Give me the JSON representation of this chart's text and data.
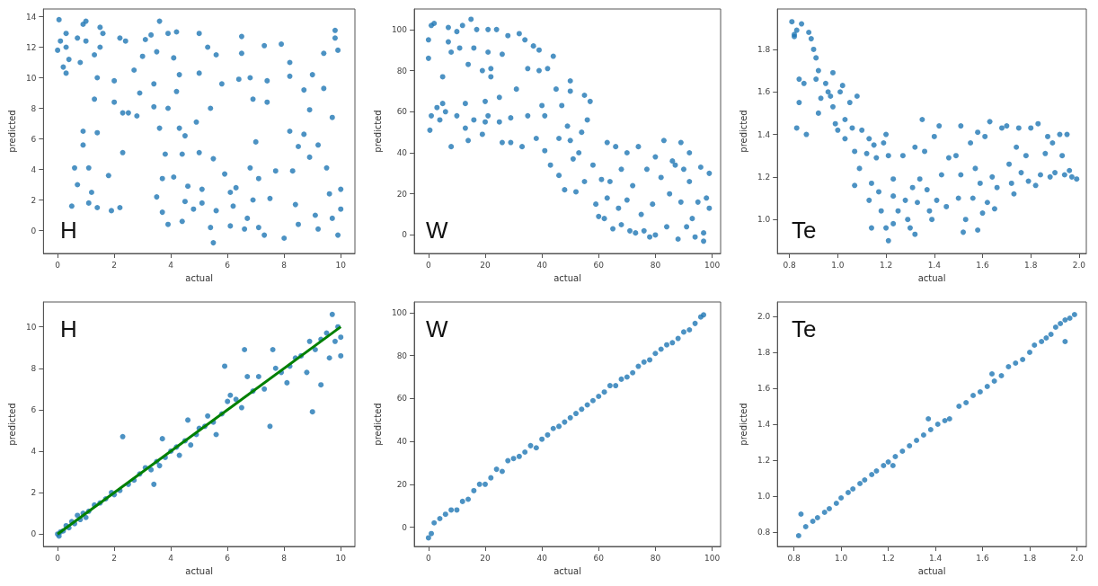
{
  "chart_data": [
    {
      "type": "scatter",
      "title": "H",
      "xlabel": "actual",
      "ylabel": "predicted",
      "color": "#1f77b4",
      "marker": "circle",
      "xlim": [
        -0.5,
        10.5
      ],
      "xticks": [
        0,
        2,
        4,
        6,
        8,
        10
      ],
      "ylim": [
        -1.5,
        14.5
      ],
      "yticks": [
        0,
        2,
        4,
        6,
        8,
        10,
        12,
        14
      ],
      "x": [
        0.05,
        0,
        0.1,
        0.3,
        0.2,
        0.3,
        0.4,
        0.3,
        0.7,
        0.8,
        0.9,
        1.0,
        1.0,
        1.3,
        1.5,
        1.6,
        1.5,
        1.4,
        1.3,
        0.9,
        0.9,
        0.6,
        0.5,
        0.7,
        1.1,
        1.2,
        1.1,
        1.4,
        1.4,
        1.9,
        1.8,
        2.3,
        2.2,
        2.0,
        2.0,
        2.3,
        2.5,
        2.4,
        2.2,
        2.7,
        2.8,
        2.9,
        3.0,
        3.1,
        3.3,
        3.4,
        3.4,
        3.6,
        3.5,
        3.6,
        3.8,
        3.5,
        3.7,
        3.9,
        3.7,
        3.9,
        3.9,
        4.1,
        4.2,
        4.2,
        4.3,
        4.1,
        4.3,
        4.5,
        4.4,
        4.6,
        4.5,
        4.4,
        4.8,
        4.9,
        5.0,
        5.0,
        5.0,
        5.1,
        5.1,
        5.3,
        5.4,
        5.5,
        5.4,
        5.5,
        5.6,
        5.6,
        5.8,
        5.9,
        6.1,
        6.1,
        6.2,
        6.3,
        6.5,
        6.4,
        6.5,
        6.6,
        6.7,
        6.8,
        6.9,
        6.8,
        6.9,
        7.0,
        7.1,
        7.1,
        7.3,
        7.4,
        7.4,
        7.3,
        7.5,
        7.7,
        7.9,
        8.0,
        8.2,
        8.2,
        8.2,
        8.3,
        8.5,
        8.4,
        8.5,
        8.7,
        8.7,
        8.9,
        8.9,
        9.0,
        9.1,
        9.2,
        9.2,
        9.4,
        9.4,
        9.5,
        9.6,
        9.7,
        9.8,
        9.8,
        9.9,
        9.7,
        9.9,
        10.0,
        10.0
      ],
      "values": [
        13.8,
        11.8,
        12.4,
        12.9,
        10.7,
        10.3,
        11.2,
        12.0,
        12.6,
        11.0,
        13.5,
        13.7,
        12.4,
        11.5,
        13.3,
        12.9,
        12.0,
        10.0,
        8.6,
        6.5,
        5.6,
        4.1,
        1.6,
        3.0,
        4.1,
        2.5,
        1.8,
        6.4,
        1.5,
        1.3,
        3.6,
        5.1,
        1.5,
        9.8,
        8.4,
        7.7,
        7.7,
        12.4,
        12.6,
        10.5,
        7.5,
        9.0,
        11.4,
        12.5,
        12.8,
        9.6,
        8.1,
        13.7,
        11.7,
        6.7,
        5.0,
        2.2,
        1.2,
        0.4,
        3.4,
        8.0,
        12.9,
        11.3,
        9.1,
        13.0,
        10.2,
        3.5,
        6.7,
        6.2,
        5.0,
        2.9,
        1.9,
        0.6,
        1.4,
        7.1,
        10.3,
        12.9,
        5.1,
        2.7,
        1.8,
        12.0,
        8.0,
        4.7,
        0.2,
        -0.8,
        1.3,
        11.5,
        9.6,
        3.7,
        2.5,
        0.3,
        1.6,
        2.8,
        12.7,
        9.9,
        11.6,
        0.1,
        0.8,
        4.1,
        2.0,
        10.0,
        8.6,
        5.8,
        3.4,
        0.2,
        12.1,
        9.8,
        8.4,
        -0.3,
        2.1,
        3.9,
        12.2,
        -0.5,
        11.0,
        10.1,
        6.5,
        3.9,
        0.4,
        1.7,
        5.5,
        6.3,
        9.2,
        7.9,
        4.8,
        10.2,
        1.0,
        0.1,
        5.6,
        11.6,
        9.3,
        4.1,
        2.4,
        7.4,
        13.1,
        12.6,
        11.8,
        0.8,
        -0.3,
        2.7,
        1.4
      ]
    },
    {
      "type": "scatter",
      "title": "W",
      "xlabel": "actual",
      "ylabel": "predicted",
      "color": "#1f77b4",
      "marker": "circle",
      "xlim": [
        -5,
        103
      ],
      "xticks": [
        0,
        20,
        40,
        60,
        80,
        100
      ],
      "ylim": [
        -9,
        110
      ],
      "yticks": [
        0,
        20,
        40,
        60,
        80,
        100
      ],
      "x": [
        0,
        0,
        1,
        2,
        1,
        0.5,
        3,
        4,
        5,
        5,
        6,
        7,
        7,
        8,
        8,
        10,
        10,
        11,
        12,
        13,
        13,
        14,
        15,
        16,
        16,
        14,
        17,
        19,
        19,
        20,
        20,
        21,
        21,
        22,
        22,
        21,
        24,
        25,
        25,
        26,
        26,
        28,
        29,
        29,
        31,
        32,
        33,
        34,
        35,
        35,
        37,
        38,
        39,
        39,
        40,
        41,
        41,
        42,
        43,
        44,
        45,
        46,
        46,
        47,
        48,
        49,
        50,
        50,
        50,
        51,
        52,
        53,
        54,
        55,
        55,
        56,
        57,
        58,
        59,
        60,
        61,
        62,
        63,
        63,
        64,
        65,
        66,
        67,
        68,
        68,
        70,
        70,
        71,
        72,
        73,
        74,
        75,
        76,
        77,
        78,
        79,
        80,
        80,
        82,
        83,
        84,
        85,
        86,
        87,
        88,
        89,
        89,
        90,
        91,
        92,
        92,
        93,
        94,
        95,
        96,
        97,
        98,
        99,
        99,
        97
      ],
      "values": [
        86,
        95,
        102,
        103,
        58,
        51,
        62,
        56,
        77,
        64,
        60,
        101,
        94,
        89,
        43,
        58,
        99,
        91,
        102,
        64,
        52,
        83,
        105,
        91,
        56,
        46,
        100,
        80,
        49,
        55,
        65,
        100,
        89,
        81,
        77,
        58,
        100,
        55,
        67,
        88,
        45,
        97,
        57,
        45,
        71,
        98,
        43,
        95,
        81,
        58,
        92,
        47,
        90,
        80,
        63,
        58,
        41,
        81,
        34,
        87,
        71,
        47,
        29,
        63,
        22,
        53,
        75,
        46,
        70,
        37,
        21,
        40,
        50,
        68,
        26,
        56,
        65,
        34,
        15,
        9,
        27,
        8,
        45,
        18,
        26,
        3,
        43,
        13,
        5,
        32,
        40,
        17,
        2,
        24,
        1,
        43,
        10,
        2,
        32,
        -1,
        15,
        38,
        0,
        28,
        46,
        4,
        20,
        36,
        34,
        -2,
        16,
        45,
        32,
        4,
        40,
        26,
        8,
        -1,
        16,
        33,
        1,
        18,
        30,
        13,
        -3
      ]
    },
    {
      "type": "scatter",
      "title": "Te",
      "xlabel": "actual",
      "ylabel": "predicted",
      "color": "#1f77b4",
      "marker": "circle",
      "xlim": [
        0.75,
        2.03
      ],
      "xticks": [
        {
          "value": 0.8,
          "label": "0.8"
        },
        {
          "value": 1,
          "label": "1.0"
        },
        {
          "value": 1.2,
          "label": "1.2"
        },
        {
          "value": 1.4,
          "label": "1.4"
        },
        {
          "value": 1.6,
          "label": "1.6"
        },
        {
          "value": 1.8,
          "label": "1.8"
        },
        {
          "value": 2,
          "label": "2.0"
        }
      ],
      "ylim": [
        0.84,
        1.99
      ],
      "yticks": [
        {
          "value": 1,
          "label": "1.0"
        },
        {
          "value": 1.2,
          "label": "1.2"
        },
        {
          "value": 1.4,
          "label": "1.4"
        },
        {
          "value": 1.6,
          "label": "1.6"
        },
        {
          "value": 1.8,
          "label": "1.8"
        }
      ],
      "x": [
        0.81,
        0.82,
        0.82,
        0.83,
        0.84,
        0.84,
        0.83,
        0.85,
        0.86,
        0.87,
        0.88,
        0.89,
        0.9,
        0.91,
        0.92,
        0.91,
        0.93,
        0.92,
        0.95,
        0.96,
        0.97,
        0.98,
        0.98,
        0.99,
        1.0,
        1.01,
        1.02,
        1.03,
        1.03,
        1.05,
        1.06,
        1.07,
        1.07,
        1.08,
        1.09,
        1.1,
        1.12,
        1.13,
        1.13,
        1.14,
        1.14,
        1.15,
        1.16,
        1.17,
        1.18,
        1.19,
        1.2,
        1.2,
        1.21,
        1.21,
        1.23,
        1.23,
        1.23,
        1.25,
        1.27,
        1.28,
        1.29,
        1.3,
        1.31,
        1.32,
        1.32,
        1.33,
        1.34,
        1.35,
        1.36,
        1.37,
        1.38,
        1.39,
        1.4,
        1.41,
        1.42,
        1.43,
        1.45,
        1.46,
        1.49,
        1.5,
        1.51,
        1.51,
        1.52,
        1.53,
        1.55,
        1.56,
        1.57,
        1.58,
        1.58,
        1.59,
        1.6,
        1.61,
        1.62,
        1.63,
        1.64,
        1.65,
        1.66,
        1.68,
        1.7,
        1.71,
        1.72,
        1.73,
        1.74,
        1.75,
        1.76,
        1.78,
        1.79,
        1.8,
        1.82,
        1.83,
        1.84,
        1.86,
        1.87,
        1.88,
        1.89,
        1.9,
        1.92,
        1.93,
        1.94,
        1.95,
        1.96,
        1.97,
        1.99
      ],
      "values": [
        1.93,
        1.87,
        1.86,
        1.89,
        1.66,
        1.55,
        1.43,
        1.92,
        1.64,
        1.4,
        1.88,
        1.85,
        1.8,
        1.76,
        1.7,
        1.66,
        1.57,
        1.5,
        1.64,
        1.6,
        1.58,
        1.69,
        1.53,
        1.45,
        1.42,
        1.6,
        1.63,
        1.47,
        1.38,
        1.55,
        1.43,
        1.32,
        1.16,
        1.58,
        1.24,
        1.42,
        1.31,
        1.38,
        1.09,
        0.96,
        1.17,
        1.35,
        1.29,
        1.13,
        1.04,
        1.36,
        1.4,
        0.96,
        1.3,
        0.9,
        1.11,
        1.19,
        0.98,
        1.04,
        1.3,
        1.09,
        1.0,
        0.96,
        1.15,
        1.34,
        0.93,
        1.08,
        1.19,
        1.47,
        1.32,
        1.14,
        1.04,
        1.0,
        1.39,
        1.09,
        1.44,
        1.21,
        1.06,
        1.29,
        1.3,
        1.1,
        1.44,
        1.21,
        0.94,
        1.0,
        1.36,
        1.1,
        1.24,
        0.95,
        1.41,
        1.17,
        1.03,
        1.39,
        1.08,
        1.46,
        1.2,
        1.05,
        1.15,
        1.43,
        1.44,
        1.26,
        1.17,
        1.12,
        1.34,
        1.43,
        1.22,
        1.3,
        1.18,
        1.43,
        1.16,
        1.45,
        1.21,
        1.31,
        1.39,
        1.2,
        1.36,
        1.22,
        1.4,
        1.3,
        1.21,
        1.4,
        1.23,
        1.2,
        1.19
      ]
    },
    {
      "type": "scatter",
      "title": "H",
      "xlabel": "actual",
      "ylabel": "predicted",
      "marker": "circle",
      "xlim": [
        -0.5,
        10.5
      ],
      "xticks": [
        0,
        2,
        4,
        6,
        8,
        10
      ],
      "ylim": [
        -0.6,
        11.2
      ],
      "yticks": [
        0,
        2,
        4,
        6,
        8,
        10
      ],
      "series": [
        {
          "type": "scatter",
          "color": "#1f77b4",
          "x": [
            0,
            0.05,
            0.1,
            0.2,
            0.3,
            0.4,
            0.5,
            0.6,
            0.7,
            0.8,
            0.9,
            1.0,
            1.1,
            1.3,
            1.5,
            1.7,
            1.9,
            2.0,
            2.2,
            2.3,
            2.5,
            2.7,
            2.9,
            3.1,
            3.3,
            3.4,
            3.5,
            3.6,
            3.7,
            3.8,
            4.0,
            4.2,
            4.3,
            4.5,
            4.6,
            4.7,
            4.9,
            5.0,
            5.2,
            5.3,
            5.5,
            5.6,
            5.8,
            5.9,
            6.0,
            6.1,
            6.3,
            6.5,
            6.6,
            6.7,
            6.9,
            7.1,
            7.3,
            7.5,
            7.6,
            7.7,
            7.9,
            8.1,
            8.2,
            8.4,
            8.6,
            8.8,
            8.9,
            9.0,
            9.1,
            9.3,
            9.3,
            9.5,
            9.6,
            9.7,
            9.8,
            9.9,
            10.0,
            10.0
          ],
          "values": [
            0,
            -0.1,
            0.1,
            0.15,
            0.4,
            0.3,
            0.6,
            0.5,
            0.9,
            0.7,
            1.0,
            0.8,
            1.1,
            1.4,
            1.5,
            1.7,
            2.0,
            1.9,
            2.1,
            4.7,
            2.4,
            2.6,
            2.9,
            3.2,
            3.1,
            2.4,
            3.5,
            3.3,
            4.6,
            3.7,
            4.0,
            4.2,
            3.8,
            4.5,
            5.5,
            4.3,
            4.8,
            5.1,
            5.2,
            5.7,
            5.4,
            4.8,
            5.8,
            8.1,
            6.4,
            6.7,
            6.5,
            6.1,
            8.9,
            7.6,
            6.9,
            7.6,
            7.0,
            5.2,
            8.9,
            8.0,
            7.8,
            7.3,
            8.1,
            8.5,
            8.6,
            7.8,
            9.3,
            5.9,
            8.9,
            7.2,
            9.4,
            9.7,
            8.5,
            10.6,
            9.3,
            10.0,
            8.6,
            9.5
          ]
        },
        {
          "type": "line",
          "color": "#008000",
          "marker": "none",
          "x": [
            0,
            10
          ],
          "values": [
            0,
            10
          ]
        }
      ]
    },
    {
      "type": "scatter",
      "title": "W",
      "xlabel": "actual",
      "ylabel": "predicted",
      "color": "#1f77b4",
      "marker": "circle",
      "xlim": [
        -5,
        103
      ],
      "xticks": [
        0,
        20,
        40,
        60,
        80,
        100
      ],
      "ylim": [
        -9,
        105
      ],
      "yticks": [
        0,
        20,
        40,
        60,
        80,
        100
      ],
      "x": [
        0,
        1,
        2,
        4,
        6,
        8,
        10,
        12,
        14,
        16,
        18,
        20,
        22,
        24,
        26,
        28,
        30,
        32,
        34,
        36,
        38,
        40,
        42,
        44,
        46,
        48,
        50,
        52,
        54,
        56,
        58,
        60,
        62,
        64,
        66,
        68,
        70,
        72,
        74,
        76,
        78,
        80,
        82,
        84,
        86,
        88,
        90,
        92,
        94,
        96,
        97
      ],
      "values": [
        -5,
        -3,
        2,
        4,
        6,
        8,
        8,
        12,
        13,
        17,
        20,
        20,
        23,
        27,
        26,
        31,
        32,
        33,
        35,
        38,
        37,
        41,
        43,
        46,
        47,
        49,
        51,
        53,
        55,
        57,
        59,
        61,
        63,
        66,
        66,
        69,
        70,
        72,
        75,
        77,
        78,
        81,
        83,
        85,
        86,
        88,
        91,
        92,
        95,
        98,
        99
      ]
    },
    {
      "type": "scatter",
      "title": "Te",
      "xlabel": "actual",
      "ylabel": "predicted",
      "color": "#1f77b4",
      "marker": "circle",
      "xlim": [
        0.73,
        2.04
      ],
      "xticks": [
        {
          "value": 0.8,
          "label": "0.8"
        },
        {
          "value": 1,
          "label": "1.0"
        },
        {
          "value": 1.2,
          "label": "1.2"
        },
        {
          "value": 1.4,
          "label": "1.4"
        },
        {
          "value": 1.6,
          "label": "1.6"
        },
        {
          "value": 1.8,
          "label": "1.8"
        },
        {
          "value": 2,
          "label": "2.0"
        }
      ],
      "ylim": [
        0.72,
        2.08
      ],
      "yticks": [
        {
          "value": 0.8,
          "label": "0.8"
        },
        {
          "value": 1,
          "label": "1.0"
        },
        {
          "value": 1.2,
          "label": "1.2"
        },
        {
          "value": 1.4,
          "label": "1.4"
        },
        {
          "value": 1.6,
          "label": "1.6"
        },
        {
          "value": 1.8,
          "label": "1.8"
        },
        {
          "value": 2,
          "label": "2.0"
        }
      ],
      "x": [
        0.82,
        0.83,
        0.85,
        0.88,
        0.9,
        0.93,
        0.95,
        0.98,
        1.0,
        1.03,
        1.05,
        1.08,
        1.1,
        1.13,
        1.15,
        1.18,
        1.2,
        1.22,
        1.23,
        1.26,
        1.29,
        1.32,
        1.35,
        1.38,
        1.37,
        1.41,
        1.44,
        1.46,
        1.5,
        1.53,
        1.56,
        1.59,
        1.62,
        1.64,
        1.65,
        1.68,
        1.71,
        1.74,
        1.77,
        1.8,
        1.82,
        1.85,
        1.87,
        1.89,
        1.91,
        1.93,
        1.95,
        1.95,
        1.97,
        1.99
      ],
      "values": [
        0.78,
        0.9,
        0.83,
        0.86,
        0.88,
        0.91,
        0.93,
        0.96,
        0.99,
        1.02,
        1.04,
        1.07,
        1.09,
        1.12,
        1.14,
        1.17,
        1.19,
        1.17,
        1.22,
        1.25,
        1.28,
        1.31,
        1.34,
        1.37,
        1.43,
        1.4,
        1.42,
        1.43,
        1.5,
        1.52,
        1.56,
        1.58,
        1.61,
        1.68,
        1.64,
        1.67,
        1.72,
        1.74,
        1.76,
        1.8,
        1.84,
        1.86,
        1.88,
        1.9,
        1.94,
        1.96,
        1.86,
        1.98,
        1.99,
        2.01
      ]
    }
  ]
}
